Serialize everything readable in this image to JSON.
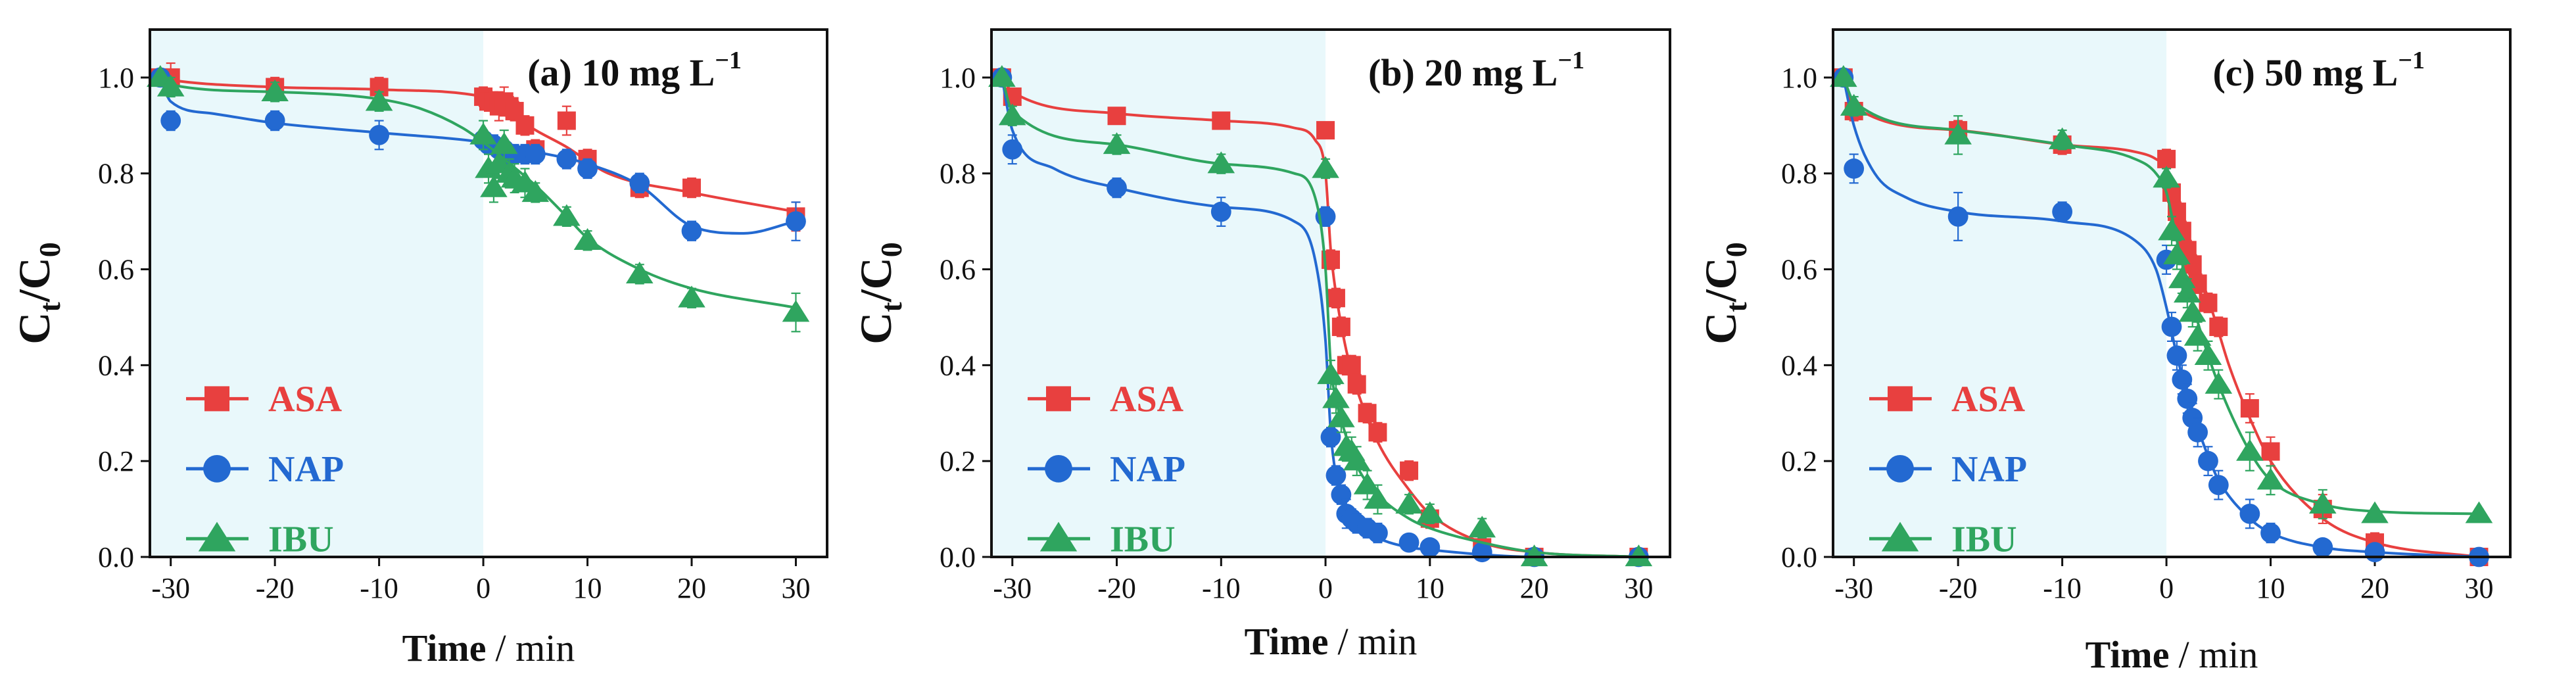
{
  "chart_data": [
    {
      "type": "scatter",
      "title": "(a) 10 mg L",
      "title_superscript": "−1",
      "xlabel": "Time",
      "xlabel_unit": "/ min",
      "ylabel": "C",
      "ylabel_sub1": "t",
      "ylabel_sep": "/C",
      "ylabel_sub2": "0",
      "xlim": [
        -32,
        33
      ],
      "ylim": [
        0,
        1.1
      ],
      "dark_phase": [
        -32,
        0
      ],
      "xticks": [
        "-30",
        "-20",
        "-10",
        "0",
        "10",
        "20",
        "30"
      ],
      "yticks": [
        "0.0",
        "0.2",
        "0.4",
        "0.6",
        "0.8",
        "1.0"
      ],
      "legend": [
        "ASA",
        "NAP",
        "IBU"
      ],
      "series": [
        {
          "name": "ASA",
          "color": "#e8403f",
          "marker": "square",
          "x": [
            -31,
            -30,
            -20,
            -10,
            0,
            0.5,
            1,
            1.5,
            2,
            2.5,
            3,
            4,
            5,
            8,
            10,
            15,
            20,
            30
          ],
          "y": [
            1.0,
            1.0,
            0.98,
            0.98,
            0.96,
            0.95,
            0.95,
            0.94,
            0.95,
            0.94,
            0.93,
            0.9,
            0.85,
            0.91,
            0.83,
            0.77,
            0.77,
            0.71
          ],
          "err": [
            0.01,
            0.03,
            0.02,
            0.02,
            0.02,
            0.02,
            0.02,
            0.03,
            0.03,
            0.02,
            0.02,
            0.02,
            0.02,
            0.03,
            0.02,
            0.02,
            0.02,
            0.03
          ],
          "fit_x": [
            -31,
            -30,
            -20,
            -10,
            0,
            2,
            4,
            8,
            12,
            20,
            30
          ],
          "fit_y": [
            1.0,
            0.995,
            0.98,
            0.975,
            0.96,
            0.945,
            0.905,
            0.855,
            0.8,
            0.76,
            0.72
          ]
        },
        {
          "name": "NAP",
          "color": "#2369d1",
          "marker": "circle",
          "x": [
            -31,
            -30,
            -20,
            -10,
            0,
            0.5,
            1,
            1.5,
            2,
            2.5,
            3,
            4,
            5,
            8,
            10,
            15,
            20,
            30
          ],
          "y": [
            1.0,
            0.91,
            0.91,
            0.88,
            0.87,
            0.86,
            0.86,
            0.85,
            0.85,
            0.84,
            0.84,
            0.84,
            0.84,
            0.83,
            0.81,
            0.78,
            0.68,
            0.7
          ],
          "err": [
            0.01,
            0.02,
            0.02,
            0.03,
            0.02,
            0.02,
            0.02,
            0.02,
            0.02,
            0.02,
            0.02,
            0.02,
            0.02,
            0.02,
            0.02,
            0.02,
            0.02,
            0.04
          ],
          "fit_x": [
            -31,
            -30,
            -26,
            -20,
            -10,
            0,
            5,
            10,
            15,
            20,
            25,
            30
          ],
          "fit_y": [
            1.0,
            0.95,
            0.925,
            0.905,
            0.885,
            0.865,
            0.845,
            0.82,
            0.775,
            0.69,
            0.675,
            0.7
          ]
        },
        {
          "name": "IBU",
          "color": "#2fa55f",
          "marker": "triangle",
          "x": [
            -31,
            -30,
            -20,
            -10,
            0,
            0.5,
            1,
            1.5,
            2,
            2.5,
            3,
            4,
            5,
            8,
            10,
            15,
            20,
            30
          ],
          "y": [
            1.0,
            0.98,
            0.97,
            0.95,
            0.88,
            0.81,
            0.77,
            0.82,
            0.86,
            0.8,
            0.79,
            0.78,
            0.76,
            0.71,
            0.66,
            0.59,
            0.54,
            0.51
          ],
          "err": [
            0.01,
            0.02,
            0.02,
            0.02,
            0.03,
            0.03,
            0.03,
            0.03,
            0.03,
            0.03,
            0.03,
            0.03,
            0.02,
            0.02,
            0.02,
            0.02,
            0.02,
            0.04
          ],
          "fit_x": [
            -31,
            -30,
            -20,
            -10,
            -6,
            -2,
            0,
            2,
            5,
            8,
            10,
            15,
            20,
            30
          ],
          "fit_y": [
            1.0,
            0.985,
            0.97,
            0.955,
            0.935,
            0.895,
            0.865,
            0.83,
            0.775,
            0.71,
            0.665,
            0.6,
            0.56,
            0.52
          ]
        }
      ]
    },
    {
      "type": "scatter",
      "title": "(b) 20 mg L",
      "title_superscript": "−1",
      "xlabel": "Time",
      "xlabel_unit": "/ min",
      "ylabel": "C",
      "ylabel_sub1": "t",
      "ylabel_sep": "/C",
      "ylabel_sub2": "0",
      "xlim": [
        -32,
        33
      ],
      "ylim": [
        0,
        1.1
      ],
      "dark_phase": [
        -32,
        0
      ],
      "xticks": [
        "-30",
        "-20",
        "-10",
        "0",
        "10",
        "20",
        "30"
      ],
      "yticks": [
        "0.0",
        "0.2",
        "0.4",
        "0.6",
        "0.8",
        "1.0"
      ],
      "legend": [
        "ASA",
        "NAP",
        "IBU"
      ],
      "series": [
        {
          "name": "ASA",
          "color": "#e8403f",
          "marker": "square",
          "x": [
            -31,
            -30,
            -20,
            -10,
            0,
            0.5,
            1,
            1.5,
            2,
            2.5,
            3,
            4,
            5,
            8,
            10,
            15,
            20,
            30
          ],
          "y": [
            1.0,
            0.96,
            0.92,
            0.91,
            0.89,
            0.62,
            0.54,
            0.48,
            0.4,
            0.4,
            0.36,
            0.3,
            0.26,
            0.18,
            0.08,
            0.02,
            0.0,
            0.0
          ],
          "err": [
            0.01,
            0.01,
            0.01,
            0.01,
            0.01,
            0.02,
            0.02,
            0.02,
            0.02,
            0.02,
            0.02,
            0.02,
            0.02,
            0.02,
            0.02,
            0.01,
            0.01,
            0.01
          ],
          "fit_x": [
            -31,
            -30,
            -20,
            -10,
            -3,
            -1,
            0,
            0.5,
            1,
            2,
            3,
            5,
            8,
            10,
            15,
            20,
            30
          ],
          "fit_y": [
            1.0,
            0.97,
            0.925,
            0.91,
            0.895,
            0.87,
            0.8,
            0.64,
            0.55,
            0.43,
            0.35,
            0.24,
            0.14,
            0.09,
            0.03,
            0.01,
            0.0
          ]
        },
        {
          "name": "NAP",
          "color": "#2369d1",
          "marker": "circle",
          "x": [
            -31,
            -30,
            -20,
            -10,
            0,
            0.5,
            1,
            1.5,
            2,
            2.5,
            3,
            4,
            5,
            8,
            10,
            15,
            20,
            30
          ],
          "y": [
            1.0,
            0.85,
            0.77,
            0.72,
            0.71,
            0.25,
            0.17,
            0.13,
            0.09,
            0.08,
            0.07,
            0.06,
            0.05,
            0.03,
            0.02,
            0.01,
            0.0,
            0.0
          ],
          "err": [
            0.01,
            0.03,
            0.02,
            0.03,
            0.02,
            0.02,
            0.02,
            0.02,
            0.03,
            0.02,
            0.02,
            0.02,
            0.02,
            0.01,
            0.01,
            0.01,
            0.01,
            0.01
          ],
          "fit_x": [
            -31,
            -30,
            -26,
            -20,
            -10,
            -3,
            -1,
            0,
            0.5,
            1,
            2,
            3,
            5,
            8,
            10,
            15,
            20,
            30
          ],
          "fit_y": [
            1.0,
            0.89,
            0.81,
            0.77,
            0.73,
            0.7,
            0.62,
            0.45,
            0.26,
            0.17,
            0.1,
            0.07,
            0.04,
            0.02,
            0.015,
            0.005,
            0.0,
            0.0
          ]
        },
        {
          "name": "IBU",
          "color": "#2fa55f",
          "marker": "triangle",
          "x": [
            -31,
            -30,
            -20,
            -10,
            0,
            0.5,
            1,
            1.5,
            2,
            2.5,
            3,
            4,
            5,
            8,
            10,
            15,
            20,
            30
          ],
          "y": [
            1.0,
            0.92,
            0.86,
            0.82,
            0.81,
            0.38,
            0.33,
            0.29,
            0.23,
            0.22,
            0.2,
            0.15,
            0.12,
            0.11,
            0.09,
            0.06,
            0.0,
            0.0
          ],
          "err": [
            0.01,
            0.02,
            0.02,
            0.02,
            0.02,
            0.03,
            0.03,
            0.03,
            0.03,
            0.03,
            0.03,
            0.03,
            0.03,
            0.02,
            0.02,
            0.02,
            0.01,
            0.01
          ],
          "fit_x": [
            -31,
            -30,
            -20,
            -10,
            -3,
            -1,
            0,
            0.5,
            1,
            2,
            3,
            5,
            8,
            10,
            15,
            20,
            30
          ],
          "fit_y": [
            1.0,
            0.93,
            0.86,
            0.82,
            0.8,
            0.75,
            0.6,
            0.4,
            0.33,
            0.25,
            0.19,
            0.13,
            0.08,
            0.06,
            0.03,
            0.01,
            0.0
          ]
        }
      ]
    },
    {
      "type": "scatter",
      "title": "(c) 50 mg L",
      "title_superscript": "−1",
      "xlabel": "Time",
      "xlabel_unit": "/ min",
      "ylabel": "C",
      "ylabel_sub1": "t",
      "ylabel_sep": "/C",
      "ylabel_sub2": "0",
      "xlim": [
        -32,
        33
      ],
      "ylim": [
        0,
        1.1
      ],
      "dark_phase": [
        -32,
        0
      ],
      "xticks": [
        "-30",
        "-20",
        "-10",
        "0",
        "10",
        "20",
        "30"
      ],
      "yticks": [
        "0.0",
        "0.2",
        "0.4",
        "0.6",
        "0.8",
        "1.0"
      ],
      "legend": [
        "ASA",
        "NAP",
        "IBU"
      ],
      "series": [
        {
          "name": "ASA",
          "color": "#e8403f",
          "marker": "square",
          "x": [
            -31,
            -30,
            -20,
            -10,
            0,
            0.5,
            1,
            1.5,
            2,
            2.5,
            3,
            4,
            5,
            8,
            10,
            15,
            20,
            30
          ],
          "y": [
            1.0,
            0.93,
            0.89,
            0.86,
            0.83,
            0.76,
            0.72,
            0.68,
            0.64,
            0.61,
            0.57,
            0.53,
            0.48,
            0.31,
            0.22,
            0.1,
            0.03,
            0.0
          ],
          "err": [
            0.01,
            0.02,
            0.02,
            0.02,
            0.02,
            0.02,
            0.02,
            0.02,
            0.02,
            0.02,
            0.02,
            0.02,
            0.02,
            0.03,
            0.03,
            0.03,
            0.02,
            0.01
          ],
          "fit_x": [
            -31,
            -30,
            -20,
            -10,
            -3,
            -1,
            0,
            1,
            2,
            3,
            4,
            5,
            6,
            8,
            10,
            15,
            20,
            30
          ],
          "fit_y": [
            1.0,
            0.94,
            0.89,
            0.86,
            0.845,
            0.83,
            0.81,
            0.74,
            0.67,
            0.6,
            0.54,
            0.47,
            0.4,
            0.29,
            0.2,
            0.08,
            0.03,
            0.0
          ]
        },
        {
          "name": "NAP",
          "color": "#2369d1",
          "marker": "circle",
          "x": [
            -31,
            -30,
            -20,
            -10,
            0,
            0.5,
            1,
            1.5,
            2,
            2.5,
            3,
            4,
            5,
            8,
            10,
            15,
            20,
            30
          ],
          "y": [
            1.0,
            0.81,
            0.71,
            0.72,
            0.62,
            0.48,
            0.42,
            0.37,
            0.33,
            0.29,
            0.26,
            0.2,
            0.15,
            0.09,
            0.05,
            0.02,
            0.01,
            0.0
          ],
          "err": [
            0.01,
            0.03,
            0.05,
            0.02,
            0.03,
            0.03,
            0.03,
            0.03,
            0.03,
            0.03,
            0.03,
            0.03,
            0.03,
            0.03,
            0.02,
            0.01,
            0.01,
            0.01
          ],
          "fit_x": [
            -31,
            -30,
            -28,
            -25,
            -20,
            -10,
            -3,
            -1,
            0,
            1,
            2,
            3,
            4,
            5,
            8,
            10,
            15,
            20,
            30
          ],
          "fit_y": [
            1.0,
            0.9,
            0.8,
            0.75,
            0.72,
            0.7,
            0.66,
            0.6,
            0.52,
            0.42,
            0.34,
            0.27,
            0.21,
            0.16,
            0.08,
            0.05,
            0.02,
            0.01,
            0.0
          ]
        },
        {
          "name": "IBU",
          "color": "#2fa55f",
          "marker": "triangle",
          "x": [
            -31,
            -30,
            -20,
            -10,
            0,
            0.5,
            1,
            1.5,
            2,
            2.5,
            3,
            4,
            5,
            8,
            10,
            15,
            20,
            30
          ],
          "y": [
            1.0,
            0.94,
            0.88,
            0.87,
            0.79,
            0.68,
            0.63,
            0.58,
            0.55,
            0.51,
            0.46,
            0.42,
            0.36,
            0.22,
            0.16,
            0.11,
            0.09,
            0.09
          ],
          "err": [
            0.01,
            0.02,
            0.04,
            0.02,
            0.02,
            0.03,
            0.03,
            0.03,
            0.03,
            0.03,
            0.03,
            0.03,
            0.03,
            0.04,
            0.03,
            0.03,
            0.01,
            0.01
          ],
          "fit_x": [
            -31,
            -30,
            -20,
            -10,
            -3,
            -1,
            0,
            1,
            2,
            3,
            5,
            8,
            10,
            15,
            20,
            30
          ],
          "fit_y": [
            1.0,
            0.95,
            0.89,
            0.86,
            0.83,
            0.8,
            0.76,
            0.66,
            0.57,
            0.49,
            0.36,
            0.22,
            0.16,
            0.11,
            0.095,
            0.09
          ]
        }
      ]
    }
  ]
}
